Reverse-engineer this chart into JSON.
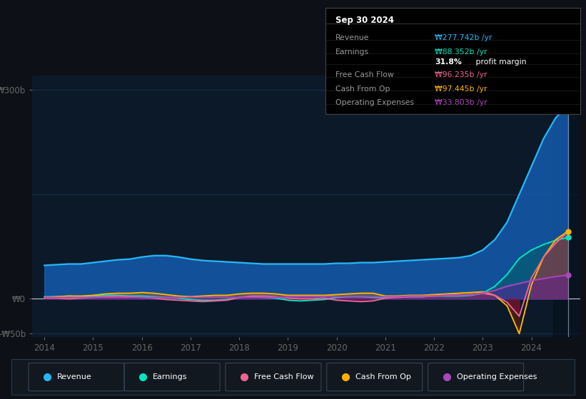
{
  "background_color": "#0d1117",
  "chart_bg_color": "#0b1929",
  "grid_color": "#1e3050",
  "zero_line_color": "#c8c8c8",
  "revenue_color": "#29b6f6",
  "earnings_color": "#00e5be",
  "free_cash_flow_color": "#f06292",
  "cash_from_op_color": "#ffb300",
  "operating_expenses_color": "#ab47bc",
  "ytick_labels": [
    "₩300b",
    "₩0",
    "-₩50b"
  ],
  "ytick_vals": [
    300,
    0,
    -50
  ],
  "xtick_labels": [
    "2014",
    "2015",
    "2016",
    "2017",
    "2018",
    "2019",
    "2020",
    "2021",
    "2022",
    "2023",
    "2024"
  ],
  "xtick_vals": [
    2014,
    2015,
    2016,
    2017,
    2018,
    2019,
    2020,
    2021,
    2022,
    2023,
    2024
  ],
  "tooltip_date": "Sep 30 2024",
  "tooltip_rows": [
    {
      "label": "Revenue",
      "value": "₩277.742b /yr",
      "color": "#29b6f6"
    },
    {
      "label": "Earnings",
      "value": "₩88.352b /yr",
      "color": "#00e5be"
    },
    {
      "label": "",
      "value": "31.8% profit margin",
      "color": "white"
    },
    {
      "label": "Free Cash Flow",
      "value": "₩96.235b /yr",
      "color": "#f06292"
    },
    {
      "label": "Cash From Op",
      "value": "₩97.445b /yr",
      "color": "#ffb300"
    },
    {
      "label": "Operating Expenses",
      "value": "₩33.803b /yr",
      "color": "#ab47bc"
    }
  ],
  "legend_items": [
    "Revenue",
    "Earnings",
    "Free Cash Flow",
    "Cash From Op",
    "Operating Expenses"
  ],
  "legend_colors": [
    "#29b6f6",
    "#00e5be",
    "#f06292",
    "#ffb300",
    "#ab47bc"
  ],
  "legend_bg": "#111820",
  "legend_border": "#2a3a4a"
}
